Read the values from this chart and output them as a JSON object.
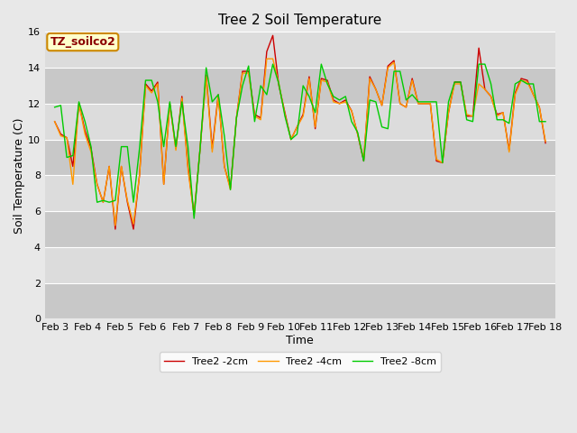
{
  "title": "Tree 2 Soil Temperature",
  "xlabel": "Time",
  "ylabel": "Soil Temperature (C)",
  "ylim": [
    0,
    16
  ],
  "yticks": [
    0,
    2,
    4,
    6,
    8,
    10,
    12,
    14,
    16
  ],
  "x_labels": [
    "Feb 3",
    "Feb 4",
    "Feb 5",
    "Feb 6",
    "Feb 7",
    "Feb 8",
    "Feb 9",
    "Feb 10",
    "Feb 11",
    "Feb 12",
    "Feb 13",
    "Feb 14",
    "Feb 15",
    "Feb 16",
    "Feb 17",
    "Feb 18"
  ],
  "annotation_text": "TZ_soilco2",
  "annotation_color": "#8B0000",
  "annotation_bg": "#FFFFCC",
  "annotation_border": "#CC8800",
  "fig_bg_color": "#E8E8E8",
  "plot_bg_color": "#DCDCDC",
  "grid_color": "#FFFFFF",
  "band_light": "#DCDCDC",
  "band_dark": "#C8C8C8",
  "series_order": [
    "Tree2 -2cm",
    "Tree2 -4cm",
    "Tree2 -8cm"
  ],
  "series": {
    "Tree2 -2cm": {
      "color": "#CC0000",
      "lw": 1.0,
      "y": [
        11.0,
        10.3,
        10.1,
        8.5,
        12.0,
        10.5,
        9.5,
        7.5,
        6.5,
        8.5,
        5.0,
        8.5,
        6.5,
        5.0,
        8.0,
        13.1,
        12.7,
        13.2,
        7.5,
        12.0,
        9.5,
        12.4,
        8.5,
        5.8,
        9.5,
        13.6,
        9.5,
        12.5,
        8.5,
        7.3,
        11.2,
        13.8,
        13.8,
        11.4,
        11.2,
        14.9,
        15.8,
        13.0,
        11.5,
        10.0,
        10.7,
        11.4,
        13.5,
        10.6,
        13.4,
        13.3,
        12.2,
        12.0,
        12.2,
        11.6,
        10.3,
        8.8,
        13.5,
        12.8,
        11.9,
        14.1,
        14.4,
        12.0,
        11.8,
        13.4,
        12.0,
        12.0,
        12.0,
        8.8,
        8.7,
        11.5,
        13.2,
        13.2,
        11.3,
        11.3,
        15.1,
        12.8,
        12.4,
        11.4,
        11.5,
        9.4,
        12.6,
        13.4,
        13.3,
        12.5,
        11.8,
        9.8
      ]
    },
    "Tree2 -4cm": {
      "color": "#FF9900",
      "lw": 1.0,
      "y": [
        11.0,
        10.2,
        10.1,
        7.5,
        12.0,
        10.3,
        9.3,
        7.5,
        6.5,
        8.5,
        5.2,
        8.5,
        6.6,
        5.3,
        8.0,
        13.0,
        12.6,
        13.1,
        7.5,
        12.0,
        9.4,
        12.3,
        8.3,
        5.8,
        9.5,
        13.5,
        9.3,
        12.4,
        8.5,
        7.2,
        11.2,
        13.7,
        13.7,
        11.3,
        11.1,
        14.5,
        14.5,
        13.1,
        11.4,
        10.0,
        10.7,
        11.3,
        13.4,
        10.7,
        13.3,
        13.2,
        12.1,
        12.0,
        12.1,
        11.6,
        10.3,
        8.9,
        13.4,
        12.8,
        11.9,
        14.0,
        14.3,
        12.0,
        11.8,
        13.3,
        12.0,
        12.0,
        12.0,
        8.9,
        8.7,
        11.5,
        13.1,
        13.1,
        11.4,
        11.3,
        13.1,
        12.8,
        12.4,
        11.3,
        11.5,
        9.3,
        12.5,
        13.3,
        13.2,
        12.5,
        11.8,
        9.9
      ]
    },
    "Tree2 -8cm": {
      "color": "#00CC00",
      "lw": 1.0,
      "y": [
        11.8,
        11.9,
        9.0,
        9.1,
        12.1,
        11.0,
        9.6,
        6.5,
        6.6,
        6.5,
        6.6,
        9.6,
        9.6,
        6.5,
        9.5,
        13.3,
        13.3,
        12.1,
        9.6,
        12.1,
        9.6,
        12.1,
        9.6,
        5.6,
        9.5,
        14.0,
        12.1,
        12.5,
        10.2,
        7.2,
        11.2,
        13.0,
        14.1,
        11.0,
        13.0,
        12.5,
        14.2,
        13.1,
        11.3,
        10.0,
        10.3,
        13.0,
        12.4,
        11.5,
        14.2,
        13.1,
        12.4,
        12.2,
        12.4,
        11.0,
        10.4,
        8.8,
        12.2,
        12.1,
        10.7,
        10.6,
        13.8,
        13.8,
        12.2,
        12.5,
        12.1,
        12.1,
        12.1,
        12.1,
        8.7,
        12.1,
        13.2,
        13.2,
        11.1,
        11.0,
        14.2,
        14.2,
        13.1,
        11.1,
        11.1,
        10.9,
        13.1,
        13.3,
        13.1,
        13.1,
        11.0,
        11.0
      ]
    }
  },
  "title_fontsize": 11,
  "label_fontsize": 9,
  "tick_fontsize": 8,
  "annot_fontsize": 9
}
